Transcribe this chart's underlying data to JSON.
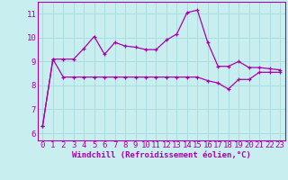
{
  "xlabel": "Windchill (Refroidissement éolien,°C)",
  "background_color": "#c8eef0",
  "grid_color": "#aadddd",
  "line_color": "#aa00aa",
  "x_ticks": [
    0,
    1,
    2,
    3,
    4,
    5,
    6,
    7,
    8,
    9,
    10,
    11,
    12,
    13,
    14,
    15,
    16,
    17,
    18,
    19,
    20,
    21,
    22,
    23
  ],
  "y_ticks": [
    6,
    7,
    8,
    9,
    10,
    11
  ],
  "ylim": [
    5.7,
    11.5
  ],
  "xlim": [
    -0.5,
    23.5
  ],
  "line1_x": [
    0,
    1,
    2,
    3,
    4,
    5,
    6,
    7,
    8,
    9,
    10,
    11,
    12,
    13,
    14,
    15,
    16,
    17,
    18,
    19,
    20,
    21,
    22,
    23
  ],
  "line1_y": [
    6.3,
    9.1,
    9.1,
    9.1,
    9.55,
    10.05,
    9.3,
    9.8,
    9.65,
    9.6,
    9.5,
    9.5,
    9.9,
    10.15,
    11.05,
    11.15,
    9.8,
    8.8,
    8.8,
    9.0,
    8.75,
    8.75,
    8.7,
    8.65
  ],
  "line2_x": [
    0,
    1,
    2,
    3,
    4,
    5,
    6,
    7,
    8,
    9,
    10,
    11,
    12,
    13,
    14,
    15,
    16,
    17,
    18,
    19,
    20,
    21,
    22,
    23
  ],
  "line2_y": [
    6.3,
    9.1,
    8.35,
    8.35,
    8.35,
    8.35,
    8.35,
    8.35,
    8.35,
    8.35,
    8.35,
    8.35,
    8.35,
    8.35,
    8.35,
    8.35,
    8.2,
    8.1,
    7.85,
    8.25,
    8.25,
    8.55,
    8.55,
    8.55
  ],
  "tick_fontsize": 6.5,
  "xlabel_fontsize": 6.5,
  "linewidth": 0.9,
  "markersize": 3.5
}
